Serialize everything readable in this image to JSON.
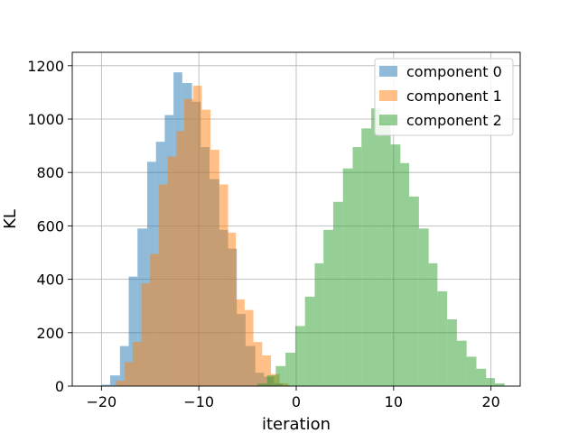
{
  "chart_data": {
    "type": "histogram",
    "title": "",
    "xlabel": "iteration",
    "ylabel": "KL",
    "xlim": [
      -23,
      23
    ],
    "ylim": [
      0,
      1250
    ],
    "xticks": [
      -20,
      -10,
      0,
      10,
      20
    ],
    "xtick_labels": [
      "−20",
      "−10",
      "0",
      "10",
      "20"
    ],
    "yticks": [
      0,
      200,
      400,
      600,
      800,
      1000,
      1200
    ],
    "ytick_labels": [
      "0",
      "200",
      "400",
      "600",
      "800",
      "1000",
      "1200"
    ],
    "grid": true,
    "legend_position": "upper right",
    "series": [
      {
        "name": "component 0",
        "color": "#1f77b4",
        "opacity": 0.5,
        "bins": [
          [
            -20.0,
            -19.1,
            5
          ],
          [
            -19.1,
            -18.1,
            40
          ],
          [
            -18.1,
            -17.2,
            150
          ],
          [
            -17.2,
            -16.3,
            410
          ],
          [
            -16.3,
            -15.3,
            590
          ],
          [
            -15.3,
            -14.4,
            840
          ],
          [
            -14.4,
            -13.5,
            915
          ],
          [
            -13.5,
            -12.6,
            1015
          ],
          [
            -12.6,
            -11.7,
            1175
          ],
          [
            -11.7,
            -10.7,
            1135
          ],
          [
            -10.7,
            -9.8,
            1065
          ],
          [
            -9.8,
            -8.9,
            895
          ],
          [
            -8.9,
            -7.9,
            775
          ],
          [
            -7.9,
            -7.0,
            585
          ],
          [
            -7.0,
            -6.1,
            515
          ],
          [
            -6.1,
            -5.2,
            270
          ],
          [
            -5.2,
            -4.2,
            150
          ],
          [
            -4.2,
            -3.3,
            50
          ],
          [
            -3.3,
            -2.3,
            35
          ],
          [
            -2.3,
            -1.4,
            10
          ]
        ]
      },
      {
        "name": "component 1",
        "color": "#ff7f0e",
        "opacity": 0.5,
        "bins": [
          [
            -18.5,
            -17.6,
            20
          ],
          [
            -17.6,
            -16.8,
            90
          ],
          [
            -16.8,
            -15.9,
            165
          ],
          [
            -15.9,
            -15.0,
            385
          ],
          [
            -15.0,
            -14.1,
            495
          ],
          [
            -14.1,
            -13.2,
            755
          ],
          [
            -13.2,
            -12.3,
            860
          ],
          [
            -12.3,
            -11.5,
            955
          ],
          [
            -11.5,
            -10.6,
            1075
          ],
          [
            -10.6,
            -9.7,
            1125
          ],
          [
            -9.7,
            -8.8,
            1035
          ],
          [
            -8.8,
            -7.9,
            885
          ],
          [
            -7.9,
            -7.0,
            755
          ],
          [
            -7.0,
            -6.2,
            575
          ],
          [
            -6.2,
            -5.3,
            325
          ],
          [
            -5.3,
            -4.4,
            285
          ],
          [
            -4.4,
            -3.5,
            165
          ],
          [
            -3.5,
            -2.6,
            115
          ],
          [
            -2.6,
            -1.7,
            45
          ],
          [
            -1.7,
            -0.8,
            10
          ]
        ]
      },
      {
        "name": "component 2",
        "color": "#2ca02c",
        "opacity": 0.5,
        "bins": [
          [
            -4.0,
            -3.0,
            10
          ],
          [
            -3.0,
            -2.1,
            40
          ],
          [
            -2.1,
            -1.1,
            75
          ],
          [
            -1.1,
            -0.1,
            125
          ],
          [
            -0.1,
            0.9,
            225
          ],
          [
            0.9,
            1.9,
            335
          ],
          [
            1.9,
            2.8,
            460
          ],
          [
            2.8,
            3.8,
            585
          ],
          [
            3.8,
            4.8,
            690
          ],
          [
            4.8,
            5.8,
            815
          ],
          [
            5.8,
            6.7,
            895
          ],
          [
            6.7,
            7.7,
            965
          ],
          [
            7.7,
            8.7,
            1040
          ],
          [
            8.7,
            9.7,
            985
          ],
          [
            9.7,
            10.7,
            905
          ],
          [
            10.7,
            11.6,
            835
          ],
          [
            11.6,
            12.6,
            710
          ],
          [
            12.6,
            13.6,
            590
          ],
          [
            13.6,
            14.5,
            460
          ],
          [
            14.5,
            15.5,
            355
          ],
          [
            15.5,
            16.5,
            250
          ],
          [
            16.5,
            17.5,
            170
          ],
          [
            17.5,
            18.5,
            110
          ],
          [
            18.5,
            19.5,
            65
          ],
          [
            19.5,
            20.4,
            30
          ],
          [
            20.4,
            21.4,
            10
          ]
        ]
      }
    ]
  }
}
